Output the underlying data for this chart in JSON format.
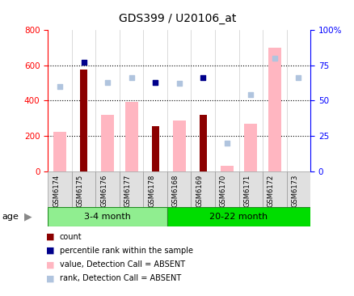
{
  "title": "GDS399 / U20106_at",
  "samples": [
    "GSM6174",
    "GSM6175",
    "GSM6176",
    "GSM6177",
    "GSM6178",
    "GSM6168",
    "GSM6169",
    "GSM6170",
    "GSM6171",
    "GSM6172",
    "GSM6173"
  ],
  "group1_indices": [
    0,
    1,
    2,
    3,
    4
  ],
  "group2_indices": [
    5,
    6,
    7,
    8,
    9,
    10
  ],
  "group1_label": "3-4 month",
  "group2_label": "20-22 month",
  "count_values": [
    null,
    575,
    null,
    null,
    255,
    null,
    320,
    null,
    null,
    null,
    null
  ],
  "percentile_rank_values": [
    null,
    77,
    null,
    null,
    63,
    null,
    66,
    null,
    null,
    null,
    null
  ],
  "value_absent": [
    225,
    null,
    320,
    395,
    null,
    290,
    null,
    35,
    270,
    700,
    null
  ],
  "rank_absent": [
    60,
    null,
    63,
    66,
    63,
    62,
    null,
    20,
    54,
    80,
    66
  ],
  "ylim_left": [
    0,
    800
  ],
  "ylim_right": [
    0,
    100
  ],
  "yticks_left": [
    0,
    200,
    400,
    600,
    800
  ],
  "yticks_right": [
    0,
    25,
    50,
    75,
    100
  ],
  "yticklabels_right": [
    "0",
    "25",
    "50",
    "75",
    "100%"
  ],
  "color_count": "#8B0000",
  "color_rank": "#00008B",
  "color_value_absent": "#FFB6C1",
  "color_rank_absent": "#B0C4DE",
  "group1_color": "#90EE90",
  "group2_color": "#00DD00",
  "legend": [
    {
      "color": "#8B0000",
      "label": "count"
    },
    {
      "color": "#00008B",
      "label": "percentile rank within the sample"
    },
    {
      "color": "#FFB6C1",
      "label": "value, Detection Call = ABSENT"
    },
    {
      "color": "#B0C4DE",
      "label": "rank, Detection Call = ABSENT"
    }
  ]
}
